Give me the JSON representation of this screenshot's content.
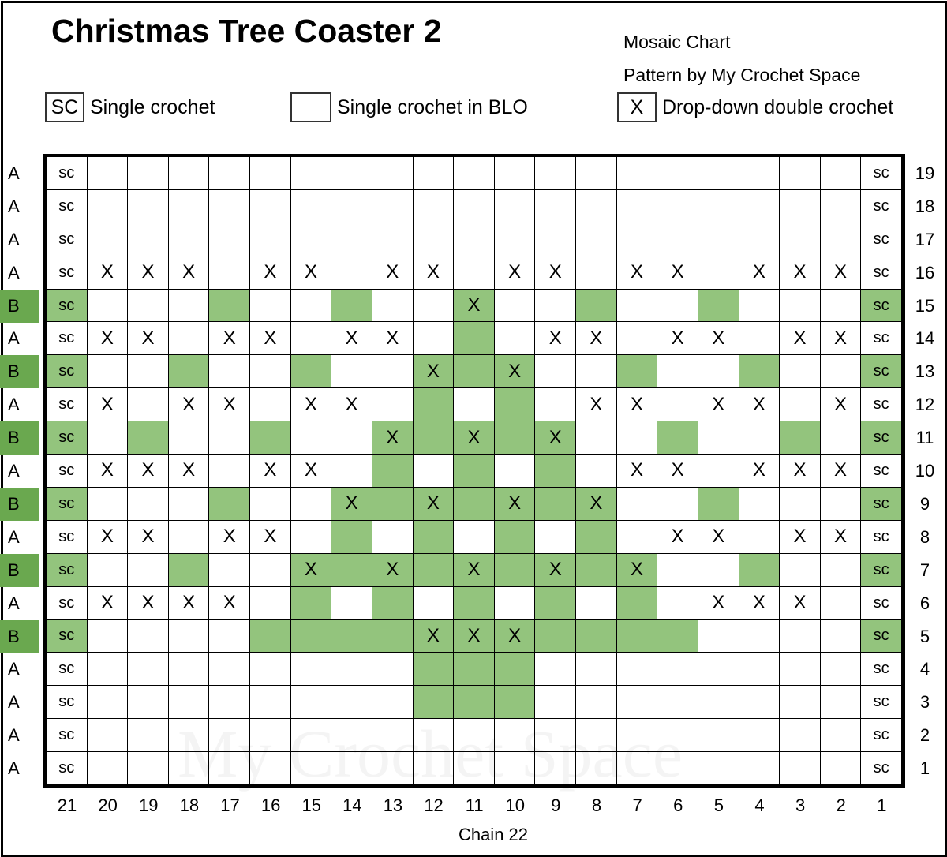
{
  "title": "Christmas Tree Coaster 2",
  "subtitle": "Mosaic Chart",
  "credit": "Pattern by My Crochet Space",
  "legend": [
    {
      "symbol": "SC",
      "label": "Single crochet"
    },
    {
      "symbol": "",
      "label": "Single crochet in BLO"
    },
    {
      "symbol": "X",
      "label": "Drop-down double crochet"
    }
  ],
  "watermark": "My Crochet Space",
  "colors": {
    "contrast_cell": "#93c47d",
    "color_b_label": "#6aa84f"
  },
  "cell_symbols": {
    "sc": "sc",
    "x": "X"
  },
  "cell_key": {
    "s": "sc",
    ".": "blank",
    "x": "X",
    "g": "green",
    "G": "green with X"
  },
  "column_numbers": [
    "21",
    "20",
    "19",
    "18",
    "17",
    "16",
    "15",
    "14",
    "13",
    "12",
    "11",
    "10",
    "9",
    "8",
    "7",
    "6",
    "5",
    "4",
    "3",
    "2",
    "1"
  ],
  "foundation": "Chain 22",
  "rows": [
    {
      "num": "19",
      "color": "A",
      "cells": "s...................s"
    },
    {
      "num": "18",
      "color": "A",
      "cells": "s...................s"
    },
    {
      "num": "17",
      "color": "A",
      "cells": "s...................s"
    },
    {
      "num": "16",
      "color": "A",
      "cells": "sxxx.xx.xx.xx.xx.xxxs"
    },
    {
      "num": "15",
      "color": "B",
      "cells": "s...g..g..G..g..g...s"
    },
    {
      "num": "14",
      "color": "A",
      "cells": "sxx.xx.xx.g.xx.xx.xxs"
    },
    {
      "num": "13",
      "color": "B",
      "cells": "s..g..g..GgG..g..g..s"
    },
    {
      "num": "12",
      "color": "A",
      "cells": "sx.xx.xx.g.g.xx.xx.xs"
    },
    {
      "num": "11",
      "color": "B",
      "cells": "s.g..g..GgGgG..g..g.s"
    },
    {
      "num": "10",
      "color": "A",
      "cells": "sxxx.xx.g.g.g.xx.xxxs"
    },
    {
      "num": "9",
      "color": "B",
      "cells": "s...g..GgGgGgG..g...s"
    },
    {
      "num": "8",
      "color": "A",
      "cells": "sxx.xx.g.g.g.g.xx.xxs"
    },
    {
      "num": "7",
      "color": "B",
      "cells": "s..g..GgGgGgGgG..g..s"
    },
    {
      "num": "6",
      "color": "A",
      "cells": "sxxxx.g.g.g.g.g.xxx.s"
    },
    {
      "num": "5",
      "color": "B",
      "cells": "s....ggggGGGgggg....s"
    },
    {
      "num": "4",
      "color": "A",
      "cells": "s........ggg........s"
    },
    {
      "num": "3",
      "color": "A",
      "cells": "s........ggg........s"
    },
    {
      "num": "2",
      "color": "A",
      "cells": "s...................s"
    },
    {
      "num": "1",
      "color": "A",
      "cells": "s...................s"
    }
  ]
}
